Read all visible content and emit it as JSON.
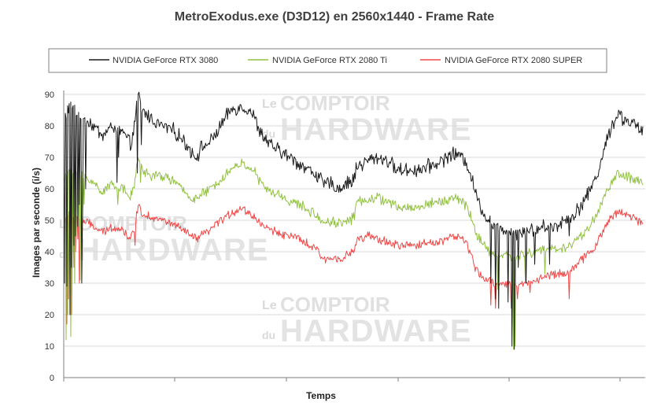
{
  "chart_data": {
    "type": "line",
    "title": "MetroExodus.exe (D3D12) en 2560x1440 - Frame Rate",
    "xlabel": "Temps",
    "ylabel": "Images par seconde (i/s)",
    "ylim": [
      0,
      90
    ],
    "yticks": [
      0,
      10,
      20,
      30,
      40,
      50,
      60,
      70,
      80,
      90
    ],
    "grid": "horizontal",
    "legend_position": "top",
    "series": [
      {
        "name": "NVIDIA GeForce RTX 3080",
        "color": "#1a1a1a",
        "noise": 1.8,
        "keyframes": [
          [
            0,
            82
          ],
          [
            0.5,
            86
          ],
          [
            1,
            85
          ],
          [
            2,
            83
          ],
          [
            3,
            80
          ],
          [
            4,
            77
          ],
          [
            5,
            80
          ],
          [
            6,
            78
          ],
          [
            6.8,
            74
          ],
          [
            7.1,
            78
          ],
          [
            7.6,
            90
          ],
          [
            8,
            85
          ],
          [
            9,
            82
          ],
          [
            10,
            80
          ],
          [
            11,
            79
          ],
          [
            12,
            76
          ],
          [
            13,
            72
          ],
          [
            13.5,
            70
          ],
          [
            14,
            73
          ],
          [
            15,
            75
          ],
          [
            16,
            80
          ],
          [
            17,
            85
          ],
          [
            18,
            86
          ],
          [
            19,
            85
          ],
          [
            19.5,
            82
          ],
          [
            20,
            78
          ],
          [
            21,
            74
          ],
          [
            22,
            72
          ],
          [
            23,
            70
          ],
          [
            24,
            68
          ],
          [
            25,
            66
          ],
          [
            26,
            64
          ],
          [
            26.5,
            61
          ],
          [
            27,
            62
          ],
          [
            28,
            60
          ],
          [
            29,
            62
          ],
          [
            29.6,
            63
          ],
          [
            29.8,
            67
          ],
          [
            30.5,
            68
          ],
          [
            31,
            69
          ],
          [
            32,
            70
          ],
          [
            33,
            69
          ],
          [
            34,
            66
          ],
          [
            35,
            66
          ],
          [
            36,
            66
          ],
          [
            37,
            67
          ],
          [
            38,
            68
          ],
          [
            39,
            70
          ],
          [
            39.5,
            71
          ],
          [
            40,
            71
          ],
          [
            41,
            69
          ],
          [
            41.5,
            64
          ],
          [
            42,
            58
          ],
          [
            43,
            51
          ],
          [
            44,
            48
          ],
          [
            45,
            47
          ],
          [
            46,
            46
          ],
          [
            47,
            47
          ],
          [
            48,
            47
          ],
          [
            49,
            48
          ],
          [
            50,
            48
          ],
          [
            51,
            50
          ],
          [
            52,
            52
          ],
          [
            53,
            56
          ],
          [
            54,
            62
          ],
          [
            54.5,
            66
          ],
          [
            55,
            72
          ],
          [
            55.8,
            80
          ],
          [
            56.5,
            84
          ],
          [
            57,
            82
          ],
          [
            58,
            81
          ],
          [
            58.5,
            79
          ],
          [
            59,
            78
          ]
        ],
        "spikes": [
          [
            0.1,
            30
          ],
          [
            0.3,
            29
          ],
          [
            0.6,
            20
          ],
          [
            0.8,
            35
          ],
          [
            1.0,
            42
          ],
          [
            1.2,
            45
          ],
          [
            1.4,
            48
          ],
          [
            1.6,
            55
          ],
          [
            1.8,
            30
          ],
          [
            1.9,
            52
          ],
          [
            2.2,
            60
          ],
          [
            5.4,
            62
          ],
          [
            5.6,
            70
          ],
          [
            7.5,
            65
          ],
          [
            7.9,
            74
          ],
          [
            43.5,
            30
          ],
          [
            44.0,
            25
          ],
          [
            44.3,
            22
          ],
          [
            45.3,
            24
          ],
          [
            45.7,
            10
          ],
          [
            45.9,
            9
          ],
          [
            46.3,
            35
          ],
          [
            47.1,
            30
          ],
          [
            48.0,
            36
          ],
          [
            49.5,
            36
          ],
          [
            51.5,
            45
          ]
        ],
        "values": []
      },
      {
        "name": "NVIDIA GeForce RTX 2080 Ti",
        "color": "#92c142",
        "noise": 1.3,
        "keyframes": [
          [
            0,
            62
          ],
          [
            0.5,
            66
          ],
          [
            1,
            65
          ],
          [
            2,
            64
          ],
          [
            3,
            62
          ],
          [
            4,
            59
          ],
          [
            5,
            62
          ],
          [
            6,
            60
          ],
          [
            6.8,
            57
          ],
          [
            7.1,
            60
          ],
          [
            7.6,
            70
          ],
          [
            8,
            66
          ],
          [
            9,
            64
          ],
          [
            10,
            64
          ],
          [
            11,
            63
          ],
          [
            12,
            60
          ],
          [
            13,
            57
          ],
          [
            13.5,
            57
          ],
          [
            14,
            58
          ],
          [
            15,
            60
          ],
          [
            16,
            63
          ],
          [
            17,
            66
          ],
          [
            18,
            68
          ],
          [
            19,
            67
          ],
          [
            19.5,
            65
          ],
          [
            20,
            62
          ],
          [
            21,
            59
          ],
          [
            22,
            58
          ],
          [
            23,
            56
          ],
          [
            24,
            55
          ],
          [
            25,
            53
          ],
          [
            26,
            51
          ],
          [
            26.5,
            49
          ],
          [
            27,
            50
          ],
          [
            28,
            49
          ],
          [
            29,
            50
          ],
          [
            29.6,
            51
          ],
          [
            29.8,
            56
          ],
          [
            30.5,
            56
          ],
          [
            31,
            57
          ],
          [
            32,
            57
          ],
          [
            33,
            56
          ],
          [
            34,
            54
          ],
          [
            35,
            54
          ],
          [
            36,
            54
          ],
          [
            37,
            55
          ],
          [
            38,
            56
          ],
          [
            39,
            56
          ],
          [
            39.5,
            57
          ],
          [
            40,
            57
          ],
          [
            41,
            55
          ],
          [
            41.5,
            51
          ],
          [
            42,
            46
          ],
          [
            43,
            41
          ],
          [
            44,
            39
          ],
          [
            45,
            39
          ],
          [
            46,
            38
          ],
          [
            47,
            39
          ],
          [
            48,
            40
          ],
          [
            49,
            41
          ],
          [
            50,
            41
          ],
          [
            51,
            41
          ],
          [
            52,
            43
          ],
          [
            53,
            46
          ],
          [
            54,
            50
          ],
          [
            54.5,
            53
          ],
          [
            55,
            57
          ],
          [
            55.8,
            62
          ],
          [
            56.5,
            65
          ],
          [
            57,
            64
          ],
          [
            58,
            63
          ],
          [
            58.5,
            62
          ],
          [
            59,
            62
          ]
        ],
        "spikes": [
          [
            0.2,
            12
          ],
          [
            0.4,
            20
          ],
          [
            0.7,
            13
          ],
          [
            0.9,
            40
          ],
          [
            1.1,
            30
          ],
          [
            1.3,
            45
          ],
          [
            1.5,
            48
          ],
          [
            1.7,
            31
          ],
          [
            1.9,
            50
          ],
          [
            2.1,
            55
          ],
          [
            5.5,
            55
          ],
          [
            7.8,
            62
          ],
          [
            45.8,
            9
          ],
          [
            46.0,
            10
          ],
          [
            44.2,
            28
          ],
          [
            47.0,
            30
          ],
          [
            49.0,
            33
          ]
        ],
        "values": []
      },
      {
        "name": "NVIDIA GeForce RTX 2080 SUPER",
        "color": "#f04848",
        "noise": 1.1,
        "keyframes": [
          [
            0,
            50
          ],
          [
            0.5,
            52
          ],
          [
            1,
            51
          ],
          [
            2,
            50
          ],
          [
            3,
            48
          ],
          [
            4,
            46
          ],
          [
            5,
            48
          ],
          [
            6,
            47
          ],
          [
            6.8,
            44
          ],
          [
            7.1,
            46
          ],
          [
            7.6,
            55
          ],
          [
            8,
            52
          ],
          [
            9,
            51
          ],
          [
            10,
            50
          ],
          [
            11,
            49
          ],
          [
            12,
            47
          ],
          [
            13,
            45
          ],
          [
            13.5,
            44
          ],
          [
            14,
            45
          ],
          [
            15,
            47
          ],
          [
            16,
            50
          ],
          [
            17,
            52
          ],
          [
            18,
            54
          ],
          [
            19,
            52
          ],
          [
            19.5,
            51
          ],
          [
            20,
            49
          ],
          [
            21,
            47
          ],
          [
            22,
            46
          ],
          [
            23,
            45
          ],
          [
            24,
            44
          ],
          [
            25,
            42
          ],
          [
            26,
            40
          ],
          [
            26.5,
            37
          ],
          [
            27,
            38
          ],
          [
            28,
            38
          ],
          [
            29,
            39
          ],
          [
            29.6,
            40
          ],
          [
            29.8,
            44
          ],
          [
            30.5,
            44
          ],
          [
            31,
            45
          ],
          [
            32,
            44
          ],
          [
            33,
            43
          ],
          [
            34,
            42
          ],
          [
            35,
            42
          ],
          [
            36,
            42
          ],
          [
            37,
            43
          ],
          [
            38,
            43
          ],
          [
            39,
            44
          ],
          [
            39.5,
            45
          ],
          [
            40,
            45
          ],
          [
            41,
            43
          ],
          [
            41.5,
            39
          ],
          [
            42,
            34
          ],
          [
            43,
            31
          ],
          [
            44,
            30
          ],
          [
            45,
            30
          ],
          [
            46,
            29
          ],
          [
            47,
            30
          ],
          [
            48,
            31
          ],
          [
            49,
            32
          ],
          [
            50,
            33
          ],
          [
            51,
            33
          ],
          [
            52,
            35
          ],
          [
            53,
            38
          ],
          [
            54,
            41
          ],
          [
            54.5,
            44
          ],
          [
            55,
            47
          ],
          [
            55.8,
            51
          ],
          [
            56.5,
            53
          ],
          [
            57,
            52
          ],
          [
            58,
            51
          ],
          [
            58.5,
            50
          ],
          [
            59,
            49
          ]
        ],
        "spikes": [
          [
            0.3,
            17
          ],
          [
            0.5,
            25
          ],
          [
            0.8,
            20
          ],
          [
            1.0,
            35
          ],
          [
            1.2,
            40
          ],
          [
            1.4,
            44
          ],
          [
            1.6,
            30
          ],
          [
            1.8,
            42
          ],
          [
            7.3,
            42
          ],
          [
            43.5,
            23
          ],
          [
            44.0,
            22
          ],
          [
            45.6,
            22
          ],
          [
            46.2,
            25
          ],
          [
            51.5,
            25
          ],
          [
            47.5,
            27
          ]
        ],
        "values": []
      }
    ]
  },
  "watermark": {
    "le": "Le",
    "comptoir": "COMPTOIR",
    "du": "du",
    "hardware": "HARDWARE"
  }
}
